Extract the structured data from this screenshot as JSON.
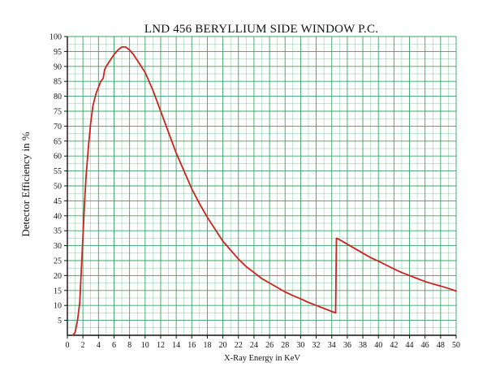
{
  "chart_data": {
    "type": "line",
    "title": "LND 456 BERYLLIUM SIDE WINDOW P.C.",
    "xlabel": "X-Ray Energy in KeV",
    "ylabel": "Detector Efficiency in %",
    "xlim": [
      0,
      50
    ],
    "ylim": [
      0,
      100
    ],
    "xticks": [
      0,
      2,
      4,
      6,
      8,
      10,
      12,
      14,
      16,
      18,
      20,
      22,
      24,
      26,
      28,
      30,
      32,
      34,
      36,
      38,
      40,
      42,
      44,
      46,
      48,
      50
    ],
    "yticks": [
      5,
      10,
      15,
      20,
      25,
      30,
      35,
      40,
      45,
      50,
      55,
      60,
      65,
      70,
      75,
      80,
      85,
      90,
      95,
      100
    ],
    "grid": true,
    "legend": "none",
    "colors": {
      "line": "#cc2222",
      "grid": "#2e9e5e",
      "axis": "#111111"
    },
    "series": [
      {
        "values": [
          [
            0.7,
            0
          ],
          [
            1.0,
            1
          ],
          [
            1.3,
            5
          ],
          [
            1.6,
            11
          ],
          [
            1.8,
            22
          ],
          [
            2.0,
            33
          ],
          [
            2.2,
            44
          ],
          [
            2.4,
            53
          ],
          [
            2.7,
            63
          ],
          [
            3.0,
            71
          ],
          [
            3.3,
            77
          ],
          [
            3.7,
            81
          ],
          [
            4.0,
            83
          ],
          [
            4.3,
            85
          ],
          [
            4.6,
            86
          ],
          [
            4.8,
            89
          ],
          [
            5.0,
            90
          ],
          [
            5.5,
            92
          ],
          [
            6.0,
            94
          ],
          [
            6.5,
            95.5
          ],
          [
            7.0,
            96.5
          ],
          [
            7.5,
            96.5
          ],
          [
            8.0,
            95.5
          ],
          [
            8.5,
            94
          ],
          [
            9.0,
            92
          ],
          [
            10.0,
            88
          ],
          [
            11.0,
            82
          ],
          [
            12.0,
            75
          ],
          [
            13.0,
            68
          ],
          [
            14.0,
            61
          ],
          [
            15.0,
            55
          ],
          [
            16.0,
            49
          ],
          [
            17.0,
            44
          ],
          [
            18.0,
            39.5
          ],
          [
            19.0,
            35.5
          ],
          [
            20.0,
            31.5
          ],
          [
            21.0,
            28.5
          ],
          [
            22.0,
            25.5
          ],
          [
            23.0,
            23
          ],
          [
            24.0,
            21
          ],
          [
            25.0,
            19
          ],
          [
            26.0,
            17.5
          ],
          [
            27.0,
            16
          ],
          [
            28.0,
            14.5
          ],
          [
            29.0,
            13.3
          ],
          [
            30.0,
            12.2
          ],
          [
            31.0,
            11
          ],
          [
            32.0,
            10
          ],
          [
            33.0,
            9
          ],
          [
            34.0,
            8
          ],
          [
            34.5,
            7.5
          ],
          [
            34.6,
            32.5
          ],
          [
            35.0,
            32
          ],
          [
            36.0,
            30.5
          ],
          [
            37.0,
            29
          ],
          [
            38.0,
            27.5
          ],
          [
            39.0,
            26
          ],
          [
            40.0,
            24.8
          ],
          [
            41.0,
            23.5
          ],
          [
            42.0,
            22.2
          ],
          [
            43.0,
            21
          ],
          [
            44.0,
            20
          ],
          [
            45.0,
            19
          ],
          [
            46.0,
            18
          ],
          [
            47.0,
            17.2
          ],
          [
            48.0,
            16.5
          ],
          [
            49.0,
            15.7
          ],
          [
            50.0,
            14.8
          ]
        ]
      }
    ]
  }
}
